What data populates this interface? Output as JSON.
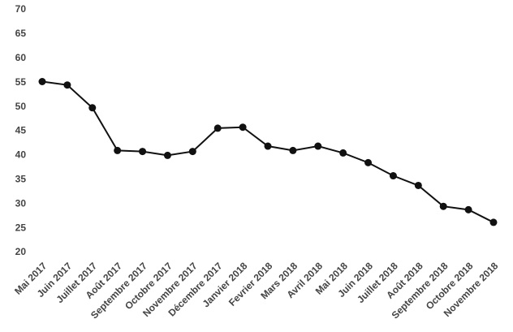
{
  "chart_data": {
    "type": "line",
    "categories": [
      "Mai 2017",
      "Juin 2017",
      "Juillet 2017",
      "Août 2017",
      "Septembre 2017",
      "Octobre 2017",
      "Novembre 2017",
      "Décembre 2017",
      "Janvier 2018",
      "Fevrier 2018",
      "Mars 2018",
      "Avril 2018",
      "Mai 2018",
      "Juin 2018",
      "Juillet 2018",
      "Août 2018",
      "Septembre 2018",
      "Octobre 2018",
      "Novembre 2018"
    ],
    "values": [
      55.2,
      54.5,
      49.8,
      41,
      40.8,
      40,
      40.8,
      45.6,
      45.8,
      41.9,
      41,
      41.9,
      40.5,
      38.5,
      35.8,
      33.8,
      29.5,
      28.8,
      26.2
    ],
    "color": "#111111",
    "ylim": [
      20,
      70
    ],
    "yticks": [
      20,
      25,
      30,
      35,
      40,
      45,
      50,
      55,
      60,
      65,
      70
    ],
    "grid": false
  }
}
